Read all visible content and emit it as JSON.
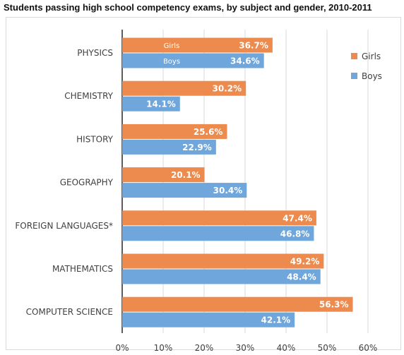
{
  "title": "Students passing high school competency exams, by subject and gender, 2010-2011",
  "chart_data": {
    "type": "bar",
    "orientation": "horizontal",
    "title": "Students passing high school competency exams, by subject and gender, 2010-2011",
    "categories": [
      "PHYSICS",
      "CHEMISTRY",
      "HISTORY",
      "GEOGRAPHY",
      "FOREIGN LANGUAGES*",
      "MATHEMATICS",
      "COMPUTER SCIENCE"
    ],
    "series": [
      {
        "name": "Girls",
        "color": "#ed8b4e",
        "values": [
          36.7,
          30.2,
          25.6,
          20.1,
          47.4,
          49.2,
          56.3
        ],
        "labels": [
          "36.7%",
          "30.2%",
          "25.6%",
          "20.1%",
          "47.4%",
          "49.2%",
          "56.3%"
        ]
      },
      {
        "name": "Boys",
        "color": "#6fa6db",
        "values": [
          34.6,
          14.1,
          22.9,
          30.4,
          46.8,
          48.4,
          42.1
        ],
        "labels": [
          "34.6%",
          "14.1%",
          "22.9%",
          "30.4%",
          "46.8%",
          "48.4%",
          "42.1%"
        ]
      }
    ],
    "inbar_labels": {
      "Girls": "Girls",
      "Boys": "Boys"
    },
    "xlim": [
      0,
      60
    ],
    "xticks": [
      "0%",
      "10%",
      "20%",
      "30%",
      "40%",
      "50%",
      "60%"
    ],
    "xtick_values": [
      0,
      10,
      20,
      30,
      40,
      50,
      60
    ],
    "grid": true,
    "legend": "right"
  }
}
